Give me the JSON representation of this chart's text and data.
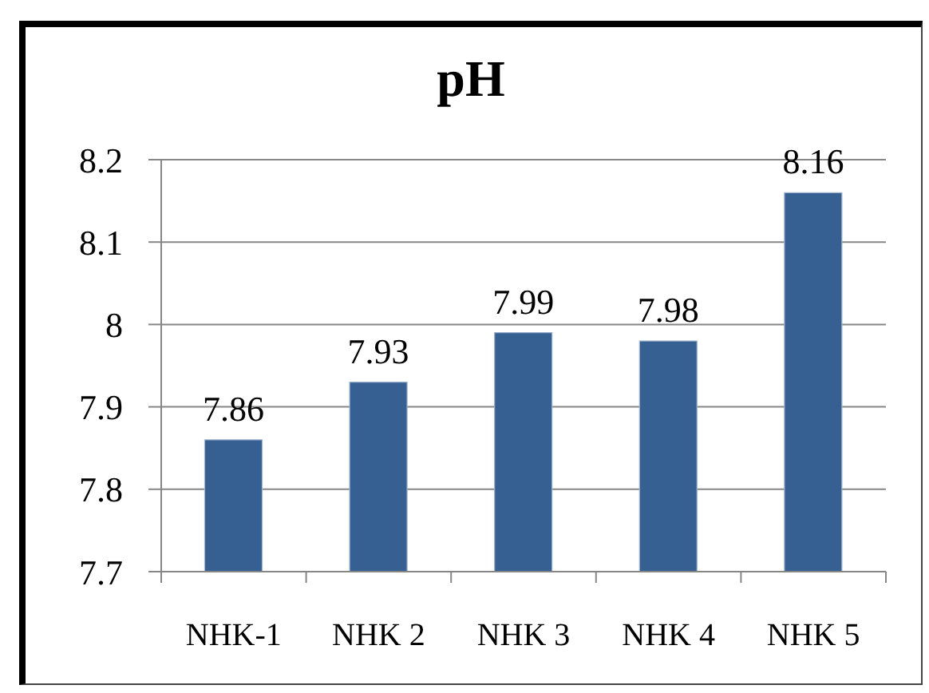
{
  "chart_data": {
    "type": "bar",
    "title": "pH",
    "categories": [
      "NHK-1",
      "NHK 2",
      "NHK 3",
      "NHK 4",
      "NHK 5"
    ],
    "values": [
      7.86,
      7.93,
      7.99,
      7.98,
      8.16
    ],
    "color": "#376092",
    "ylim": [
      7.7,
      8.2
    ],
    "yticks": [
      7.7,
      7.8,
      7.9,
      8,
      8.1,
      8.2
    ],
    "grid": "y",
    "data_labels": true
  }
}
